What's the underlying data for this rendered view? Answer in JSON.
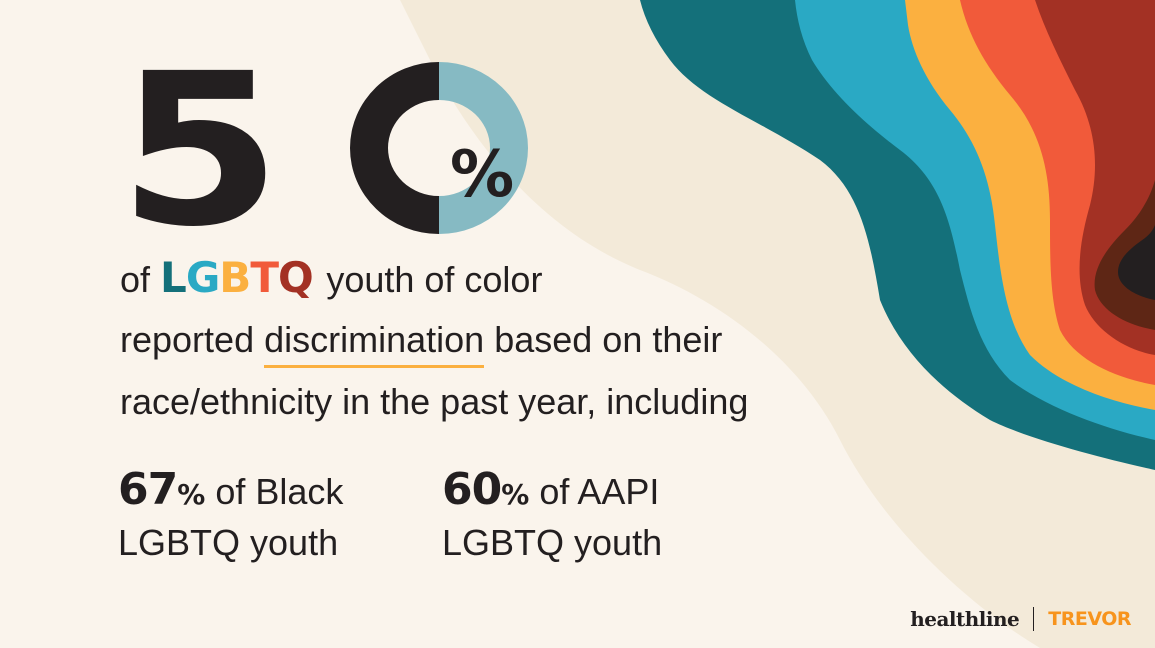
{
  "headline": {
    "digit": "5",
    "donut_fill_fraction": 0.5,
    "percent_sign": "%"
  },
  "statement": {
    "line1_prefix": "of",
    "lgbtq_letters": [
      {
        "char": "L",
        "color": "#14707a"
      },
      {
        "char": "G",
        "color": "#2aa9c4"
      },
      {
        "char": "B",
        "color": "#fbb040"
      },
      {
        "char": "T",
        "color": "#f15a3a"
      },
      {
        "char": "Q",
        "color": "#a33124"
      }
    ],
    "line1_suffix": "youth of color",
    "line2_prefix": "reported",
    "line2_emphasis": "discrimination",
    "line2_suffix": "based on their",
    "line3": "race/ethnicity in the past year, including"
  },
  "sub_stats": [
    {
      "number": "67",
      "percent": "%",
      "text": "of Black",
      "line2": "LGBTQ youth"
    },
    {
      "number": "60",
      "percent": "%",
      "text": "of AAPI",
      "line2": "LGBTQ youth"
    }
  ],
  "logos": {
    "healthline": "healthline",
    "trevor": "TREVOR"
  },
  "colors": {
    "background": "#faf4ec",
    "cream_wave": "#f3ead9",
    "teal_dark": "#14707a",
    "teal_light": "#2aa9c4",
    "yellow": "#fbb040",
    "orange": "#f15a3a",
    "red": "#a33124",
    "brown": "#5e2615",
    "black": "#231f20",
    "donut_light": "#86bac3"
  }
}
